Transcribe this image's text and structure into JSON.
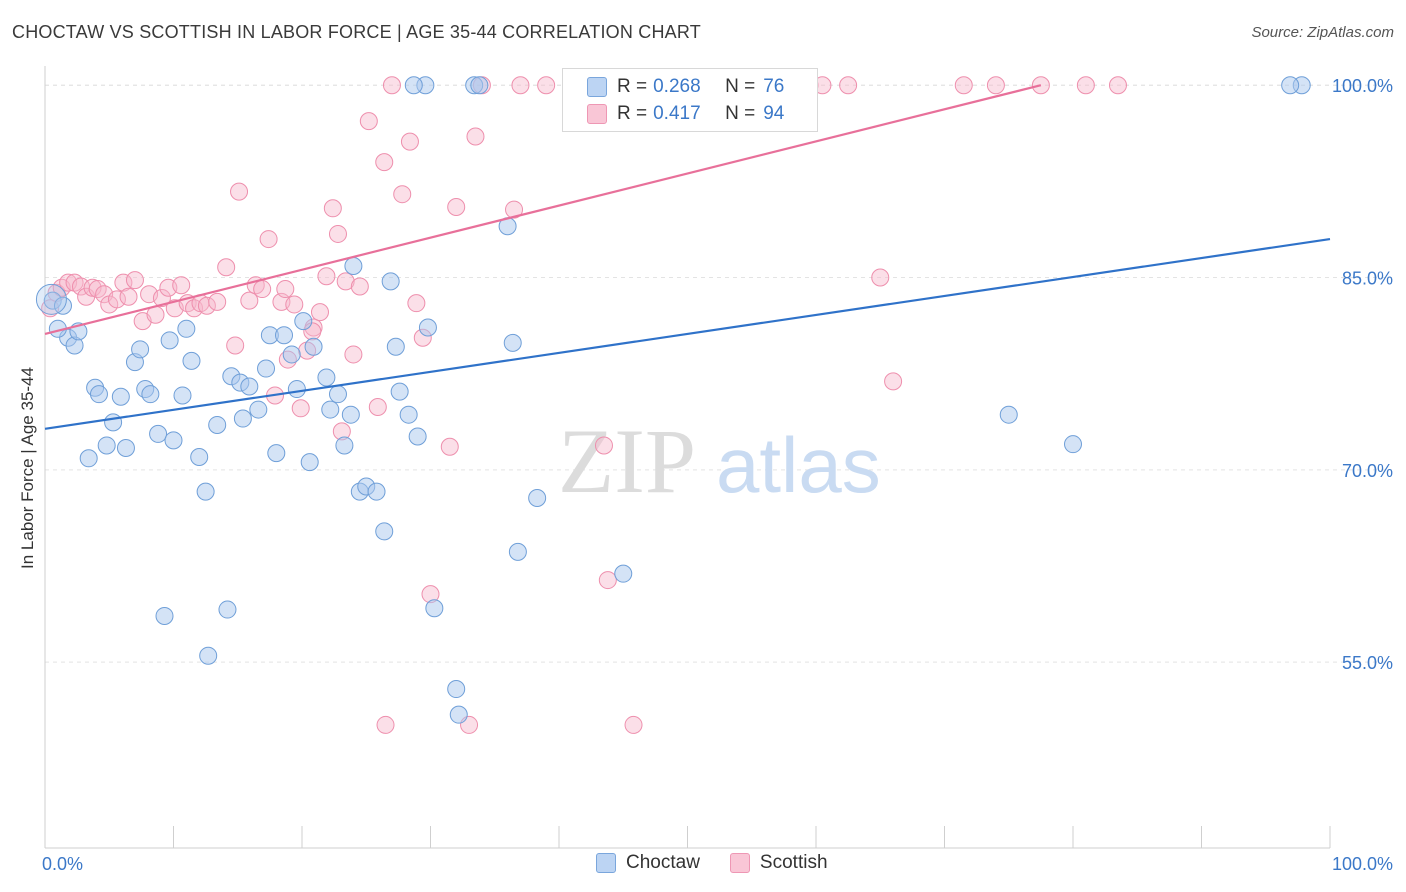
{
  "title": "CHOCTAW VS SCOTTISH IN LABOR FORCE | AGE 35-44 CORRELATION CHART",
  "source": "Source: ZipAtlas.com",
  "watermark": {
    "zip": "ZIP",
    "atlas": "atlas"
  },
  "legend": {
    "series": [
      {
        "name": "Choctaw",
        "r_label": "R =",
        "r_value": "0.268",
        "n_label": "N =",
        "n_value": "76"
      },
      {
        "name": "Scottish",
        "r_label": "R =",
        "r_value": "0.417",
        "n_label": "N =",
        "n_value": "94"
      }
    ]
  },
  "colors": {
    "choctaw_fill": "#a9c8ee",
    "choctaw_stroke": "#6f9fd8",
    "choctaw_line": "#2f72c9",
    "scottish_fill": "#f6b8cb",
    "scottish_stroke": "#ee8fad",
    "scottish_line": "#e8709a",
    "axis_text": "#3b78c8",
    "grid": "#e3e3e3"
  },
  "chart_data": {
    "type": "scatter",
    "title": "CHOCTAW VS SCOTTISH IN LABOR FORCE | AGE 35-44 CORRELATION CHART",
    "xlabel": "",
    "ylabel": "In Labor Force | Age 35-44",
    "xlim": [
      0,
      100
    ],
    "ylim": [
      40.5,
      101.5
    ],
    "x_tick_labels": [
      "0.0%",
      "100.0%"
    ],
    "y_ticks": [
      55,
      70,
      85,
      100
    ],
    "y_tick_labels": [
      "55.0%",
      "70.0%",
      "85.0%",
      "100.0%"
    ],
    "grid": true,
    "series": [
      {
        "name": "Choctaw",
        "points": [
          [
            0.6,
            83.2
          ],
          [
            1.4,
            82.8
          ],
          [
            1.8,
            80.3
          ],
          [
            2.3,
            79.7
          ],
          [
            2.6,
            80.8
          ],
          [
            1.0,
            81.0
          ],
          [
            3.4,
            70.9
          ],
          [
            3.9,
            76.4
          ],
          [
            4.2,
            75.9
          ],
          [
            4.8,
            71.9
          ],
          [
            5.3,
            73.7
          ],
          [
            5.9,
            75.7
          ],
          [
            6.3,
            71.7
          ],
          [
            7.0,
            78.4
          ],
          [
            7.4,
            79.4
          ],
          [
            7.8,
            76.3
          ],
          [
            8.2,
            75.9
          ],
          [
            8.8,
            72.8
          ],
          [
            9.3,
            58.6
          ],
          [
            9.7,
            80.1
          ],
          [
            10.0,
            72.3
          ],
          [
            10.7,
            75.8
          ],
          [
            11.0,
            81.0
          ],
          [
            11.4,
            78.5
          ],
          [
            12.0,
            71.0
          ],
          [
            12.5,
            68.3
          ],
          [
            12.7,
            55.5
          ],
          [
            13.4,
            73.5
          ],
          [
            14.2,
            59.1
          ],
          [
            14.5,
            77.3
          ],
          [
            15.2,
            76.8
          ],
          [
            15.4,
            74.0
          ],
          [
            15.9,
            76.5
          ],
          [
            16.6,
            74.7
          ],
          [
            17.2,
            77.9
          ],
          [
            17.5,
            80.5
          ],
          [
            18.0,
            71.3
          ],
          [
            18.6,
            80.5
          ],
          [
            19.2,
            79.0
          ],
          [
            19.6,
            76.3
          ],
          [
            20.1,
            81.6
          ],
          [
            20.6,
            70.6
          ],
          [
            20.9,
            79.6
          ],
          [
            21.9,
            77.2
          ],
          [
            22.2,
            74.7
          ],
          [
            22.8,
            75.9
          ],
          [
            23.3,
            71.9
          ],
          [
            23.8,
            74.3
          ],
          [
            24.0,
            85.9
          ],
          [
            24.5,
            68.3
          ],
          [
            25.0,
            68.7
          ],
          [
            25.8,
            68.3
          ],
          [
            26.4,
            65.2
          ],
          [
            26.9,
            84.7
          ],
          [
            27.3,
            79.6
          ],
          [
            27.6,
            76.1
          ],
          [
            28.3,
            74.3
          ],
          [
            29.0,
            72.6
          ],
          [
            29.8,
            81.1
          ],
          [
            30.3,
            59.2
          ],
          [
            32.0,
            52.9
          ],
          [
            32.2,
            50.9
          ],
          [
            36.0,
            89.0
          ],
          [
            36.4,
            79.9
          ],
          [
            36.8,
            63.6
          ],
          [
            38.3,
            67.8
          ],
          [
            45.0,
            61.9
          ],
          [
            58.9,
            100.0
          ],
          [
            75.0,
            74.3
          ],
          [
            80.0,
            72.0
          ],
          [
            97.8,
            100.0
          ],
          [
            96.9,
            100.0
          ],
          [
            29.6,
            100.0
          ],
          [
            33.4,
            100.0
          ],
          [
            33.8,
            100.0
          ],
          [
            28.7,
            100.0
          ]
        ]
      },
      {
        "name": "Scottish",
        "points": [
          [
            0.4,
            82.6
          ],
          [
            0.9,
            83.8
          ],
          [
            1.3,
            84.2
          ],
          [
            1.8,
            84.6
          ],
          [
            2.3,
            84.6
          ],
          [
            2.8,
            84.3
          ],
          [
            3.2,
            83.5
          ],
          [
            3.7,
            84.2
          ],
          [
            4.1,
            84.1
          ],
          [
            4.6,
            83.7
          ],
          [
            5.0,
            82.9
          ],
          [
            5.6,
            83.3
          ],
          [
            6.1,
            84.6
          ],
          [
            6.5,
            83.5
          ],
          [
            7.0,
            84.8
          ],
          [
            7.6,
            81.6
          ],
          [
            8.1,
            83.7
          ],
          [
            8.6,
            82.1
          ],
          [
            9.1,
            83.4
          ],
          [
            9.6,
            84.2
          ],
          [
            10.1,
            82.6
          ],
          [
            10.6,
            84.4
          ],
          [
            11.1,
            83.0
          ],
          [
            11.6,
            82.6
          ],
          [
            12.1,
            83.0
          ],
          [
            12.6,
            82.8
          ],
          [
            13.4,
            83.1
          ],
          [
            14.1,
            85.8
          ],
          [
            14.8,
            79.7
          ],
          [
            15.1,
            91.7
          ],
          [
            15.9,
            83.2
          ],
          [
            16.4,
            84.4
          ],
          [
            16.9,
            84.1
          ],
          [
            17.4,
            88.0
          ],
          [
            17.9,
            75.8
          ],
          [
            18.4,
            83.1
          ],
          [
            18.9,
            78.6
          ],
          [
            19.4,
            82.9
          ],
          [
            19.9,
            74.8
          ],
          [
            20.4,
            79.3
          ],
          [
            20.9,
            81.1
          ],
          [
            21.4,
            82.3
          ],
          [
            21.9,
            85.1
          ],
          [
            22.4,
            90.4
          ],
          [
            22.8,
            88.4
          ],
          [
            23.4,
            84.7
          ],
          [
            24.0,
            79.0
          ],
          [
            24.5,
            84.3
          ],
          [
            25.2,
            97.2
          ],
          [
            25.9,
            74.9
          ],
          [
            26.4,
            94.0
          ],
          [
            27.0,
            100.0
          ],
          [
            27.8,
            91.5
          ],
          [
            28.4,
            95.6
          ],
          [
            28.9,
            83.0
          ],
          [
            29.4,
            80.3
          ],
          [
            30.0,
            60.3
          ],
          [
            31.5,
            71.8
          ],
          [
            32.0,
            90.5
          ],
          [
            33.5,
            96.0
          ],
          [
            34.0,
            100.0
          ],
          [
            36.5,
            90.3
          ],
          [
            37.0,
            100.0
          ],
          [
            39.0,
            100.0
          ],
          [
            41.0,
            100.0
          ],
          [
            43.0,
            100.0
          ],
          [
            43.5,
            71.9
          ],
          [
            43.8,
            61.4
          ],
          [
            46.0,
            100.0
          ],
          [
            48.0,
            100.0
          ],
          [
            51.0,
            100.0
          ],
          [
            52.5,
            100.0
          ],
          [
            54.5,
            100.0
          ],
          [
            56.5,
            100.0
          ],
          [
            58.0,
            100.0
          ],
          [
            59.5,
            100.0
          ],
          [
            62.5,
            100.0
          ],
          [
            65.0,
            85.0
          ],
          [
            66.0,
            76.9
          ],
          [
            71.5,
            100.0
          ],
          [
            74.0,
            100.0
          ],
          [
            77.5,
            100.0
          ],
          [
            81.0,
            100.0
          ],
          [
            83.5,
            100.0
          ],
          [
            42.0,
            100.0
          ],
          [
            47.5,
            100.0
          ],
          [
            53.0,
            100.0
          ],
          [
            60.5,
            100.0
          ],
          [
            26.5,
            50.1
          ],
          [
            33.0,
            50.1
          ],
          [
            45.8,
            50.1
          ],
          [
            23.1,
            73.0
          ],
          [
            20.8,
            80.8
          ],
          [
            18.7,
            84.1
          ]
        ]
      }
    ],
    "trend_lines": [
      {
        "name": "Choctaw",
        "x": [
          0,
          100
        ],
        "y": [
          73.2,
          88.0
        ]
      },
      {
        "name": "Scottish",
        "x": [
          0,
          77.5
        ],
        "y": [
          80.6,
          100.0
        ]
      }
    ]
  }
}
